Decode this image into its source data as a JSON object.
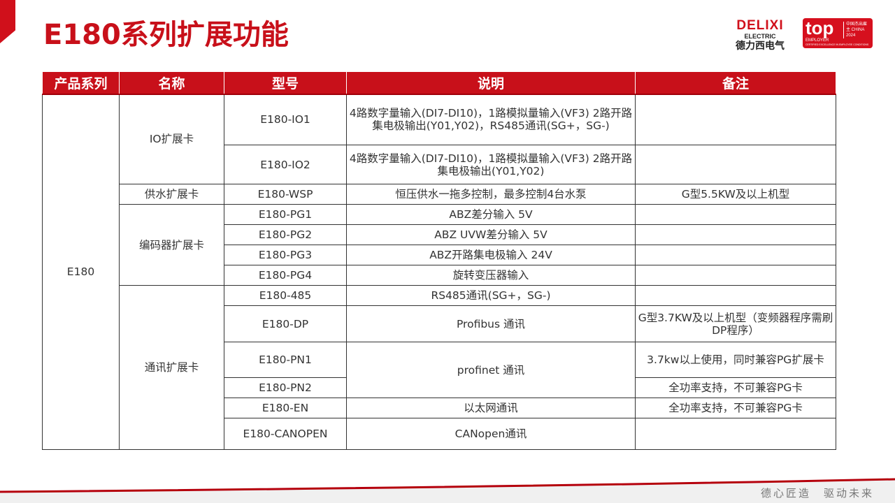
{
  "title": "E180系列扩展功能",
  "logo": {
    "delixi": "DELIXI",
    "electric": "ELECTRIC",
    "cn": "德力西电气",
    "top": "top",
    "employer": "EMPLOYER",
    "china": "中国杰出雇主 CHINA 2024",
    "certified": "CERTIFIED EXCELLENCE IN EMPLOYEE CONDITIONS"
  },
  "colors": {
    "brand": "#c8101a"
  },
  "table": {
    "headers": [
      "产品系列",
      "名称",
      "型号",
      "说明",
      "备注"
    ],
    "series": "E180",
    "groups": {
      "io": "IO扩展卡",
      "wsp": "供水扩展卡",
      "pg": "编码器扩展卡",
      "comm": "通讯扩展卡"
    },
    "rows": [
      {
        "model": "E180-IO1",
        "desc": "4路数字量输入(DI7-DI10)，1路模拟量输入(VF3) 2路开路集电极输出(Y01,Y02)，RS485通讯(SG+，SG-)",
        "note": ""
      },
      {
        "model": "E180-IO2",
        "desc": "4路数字量输入(DI7-DI10)，1路模拟量输入(VF3) 2路开路集电极输出(Y01,Y02)",
        "note": ""
      },
      {
        "model": "E180-WSP",
        "desc": "恒压供水一拖多控制，最多控制4台水泵",
        "note": "G型5.5KW及以上机型"
      },
      {
        "model": "E180-PG1",
        "desc": "ABZ差分输入 5V",
        "note": ""
      },
      {
        "model": "E180-PG2",
        "desc": "ABZ UVW差分输入 5V",
        "note": ""
      },
      {
        "model": "E180-PG3",
        "desc": "ABZ开路集电极输入 24V",
        "note": ""
      },
      {
        "model": "E180-PG4",
        "desc": "旋转变压器输入",
        "note": ""
      },
      {
        "model": "E180-485",
        "desc": "RS485通讯(SG+，SG-)",
        "note": ""
      },
      {
        "model": "E180-DP",
        "desc": "Profibus 通讯",
        "note": "G型3.7KW及以上机型（变频器程序需刷DP程序）"
      },
      {
        "model": "E180-PN1",
        "desc": "profinet 通讯",
        "note": "3.7kw以上使用，同时兼容PG扩展卡"
      },
      {
        "model": "E180-PN2",
        "desc": "",
        "note": "全功率支持，不可兼容PG卡"
      },
      {
        "model": "E180-EN",
        "desc": "以太网通讯",
        "note": "全功率支持，不可兼容PG卡"
      },
      {
        "model": "E180-CANOPEN",
        "desc": "CANopen通讯",
        "note": ""
      }
    ]
  },
  "footer": {
    "slogan": "德心匠造　驱动未来"
  }
}
